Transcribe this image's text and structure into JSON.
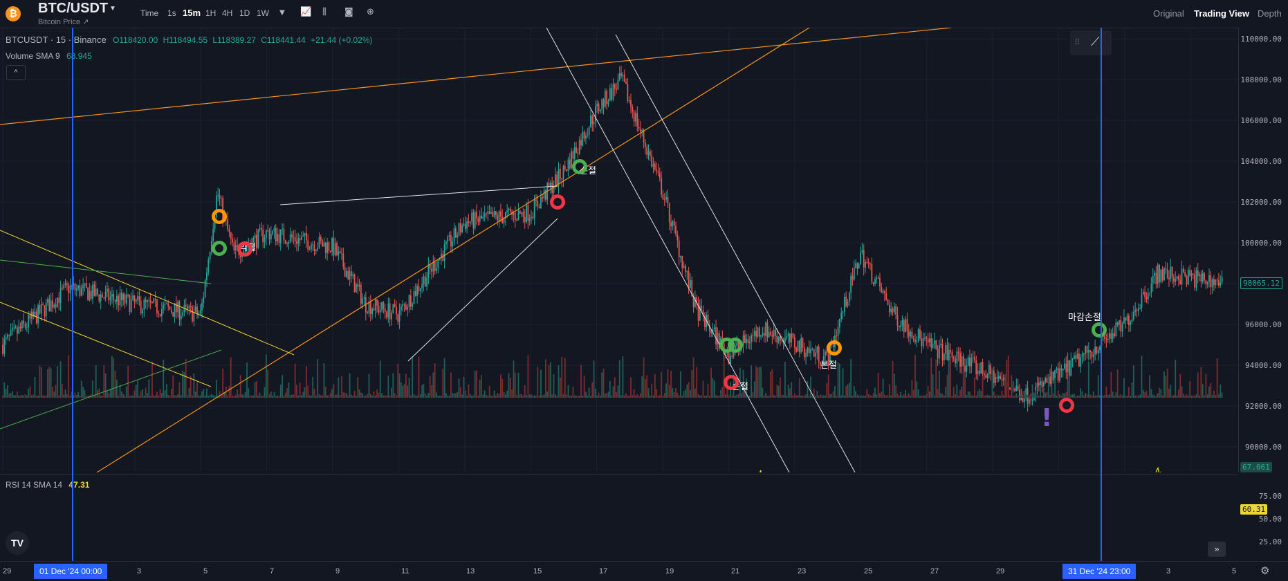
{
  "header": {
    "logo_glyph": "₿",
    "symbol": "BTC/USDT",
    "subtitle": "Bitcoin Price ↗",
    "timeframes": [
      "Time",
      "1s",
      "15m",
      "1H",
      "4H",
      "1D",
      "1W"
    ],
    "active_timeframe": "15m",
    "views": [
      "Original",
      "Trading View",
      "Depth"
    ],
    "active_view": "Trading View"
  },
  "legend": {
    "symbol_line": "BTCUSDT · 15 · Binance",
    "o": "O118420.00",
    "h": "H118494.55",
    "l": "L118389.27",
    "c": "C118441.44",
    "chg": "+21.44 (+0.02%)",
    "volume_name": "Volume SMA 9",
    "volume_val": "68.945",
    "collapse": "^"
  },
  "rsi_legend": {
    "name": "RSI 14 SMA 14",
    "val": "47.31"
  },
  "price_axis": [
    "110000.00",
    "108000.00",
    "106000.00",
    "104000.00",
    "102000.00",
    "100000.00",
    "98000.00",
    "96000.00",
    "94000.00",
    "92000.00",
    "90000.00"
  ],
  "current_price": "98065.12",
  "volume_tag": "67.061",
  "rsi_axis": [
    "75.00",
    "50.00",
    "25.00"
  ],
  "rsi_tag": "60.31",
  "date_axis": [
    "29",
    "3",
    "5",
    "7",
    "9",
    "11",
    "13",
    "15",
    "17",
    "19",
    "21",
    "23",
    "25",
    "27",
    "29",
    "3",
    "5"
  ],
  "date_selected": [
    "01 Dec '24  00:00",
    "31 Dec '24  23:00"
  ],
  "annotations": [
    "익절",
    "손절",
    "손절",
    "본절",
    "마감손절",
    "!"
  ],
  "colors": {
    "up": "#26a69a",
    "down": "#ef5350",
    "rsi": "#f0d632",
    "accent": "#2962ff",
    "orange": "#f7931a",
    "ring_green": "#4caf50",
    "ring_red": "#f23645",
    "ring_orange": "#ff9800"
  },
  "icons": [
    "bitcoin-logo",
    "chevron-down-icon",
    "bar-chart-icon",
    "candles-icon",
    "camera-icon",
    "plus-circle-icon",
    "fast-forward-icon",
    "settings-icon",
    "trendline-tool-icon",
    "drag-handle-icon"
  ],
  "chart_data": {
    "type": "line",
    "title": "BTCUSDT · 15 · Binance",
    "x_range": [
      "2024-11-29",
      "2025-01-05"
    ],
    "ylim": [
      89000,
      111000
    ],
    "x": [
      "2024-11-29",
      "2024-12-01",
      "2024-12-03",
      "2024-12-05",
      "2024-12-05 12:00",
      "2024-12-06",
      "2024-12-07",
      "2024-12-09",
      "2024-12-10",
      "2024-12-11",
      "2024-12-13",
      "2024-12-15",
      "2024-12-16",
      "2024-12-17",
      "2024-12-17 18:00",
      "2024-12-19",
      "2024-12-20",
      "2024-12-21",
      "2024-12-22",
      "2024-12-24",
      "2024-12-25",
      "2024-12-26",
      "2024-12-27",
      "2024-12-29",
      "2024-12-30",
      "2024-12-31",
      "2025-01-02",
      "2025-01-03",
      "2025-01-05"
    ],
    "series": [
      {
        "values": [
          95000,
          97800,
          97000,
          96500,
          102500,
          99500,
          100500,
          99800,
          97000,
          96500,
          101000,
          101500,
          103500,
          106500,
          108000,
          102500,
          96800,
          94500,
          95800,
          94300,
          99500,
          96500,
          95000,
          93500,
          92500,
          93500,
          96000,
          98500,
          98065
        ]
      }
    ]
  }
}
